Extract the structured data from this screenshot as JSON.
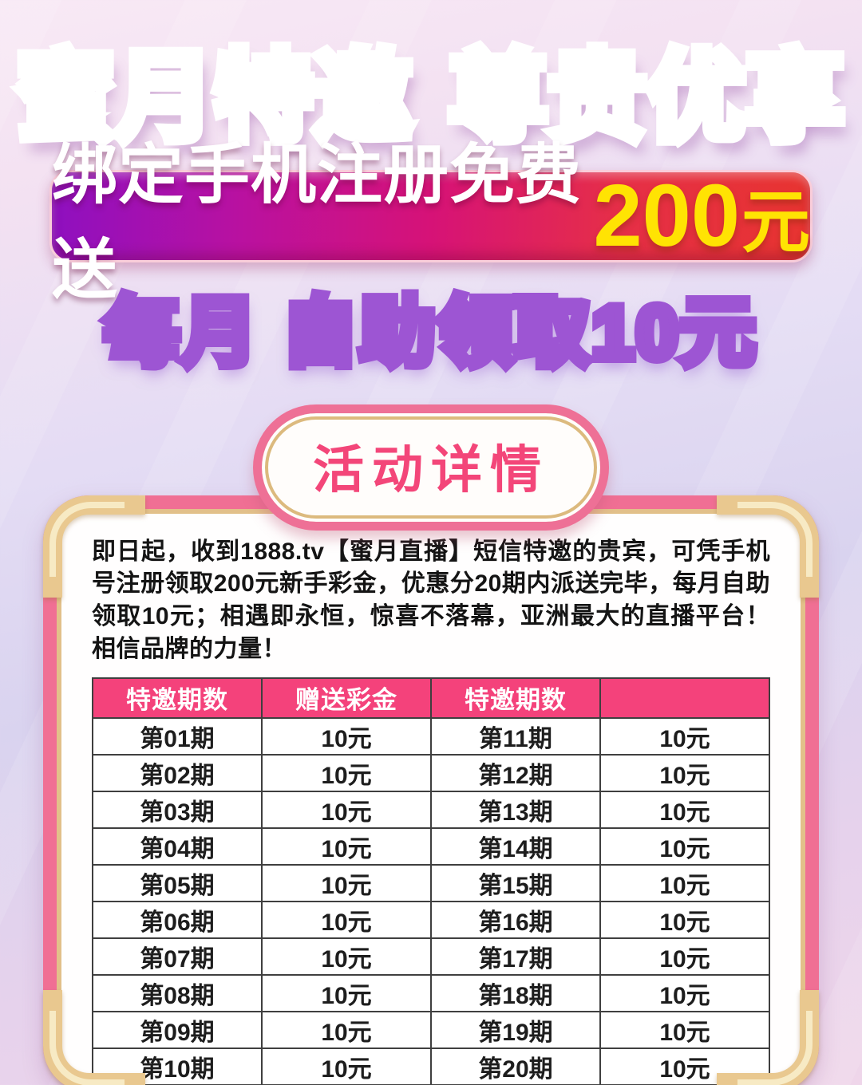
{
  "title": {
    "part1": "蜜月特邀",
    "part2": "尊贵优享"
  },
  "banner": {
    "text": "绑定手机注册免费送",
    "amount": "200",
    "unit": "元"
  },
  "subtitle": "每月 自助领取10元",
  "details_button": {
    "label": "活动详情"
  },
  "card": {
    "description": "即日起，收到1888.tv【蜜月直播】短信特邀的贵宾，可凭手机号注册领取200元新手彩金，优惠分20期内派送完毕，每月自助领取10元；相遇即永恒，惊喜不落幕，亚洲最大的直播平台！相信品牌的力量！",
    "table": {
      "headers": [
        "特邀期数",
        "赠送彩金",
        "特邀期数",
        ""
      ],
      "rows": [
        [
          "第01期",
          "10元",
          "第11期",
          "10元"
        ],
        [
          "第02期",
          "10元",
          "第12期",
          "10元"
        ],
        [
          "第03期",
          "10元",
          "第13期",
          "10元"
        ],
        [
          "第04期",
          "10元",
          "第14期",
          "10元"
        ],
        [
          "第05期",
          "10元",
          "第15期",
          "10元"
        ],
        [
          "第06期",
          "10元",
          "第16期",
          "10元"
        ],
        [
          "第07期",
          "10元",
          "第17期",
          "10元"
        ],
        [
          "第08期",
          "10元",
          "第18期",
          "10元"
        ],
        [
          "第09期",
          "10元",
          "第19期",
          "10元"
        ],
        [
          "第10期",
          "10元",
          "第20期",
          "10元"
        ]
      ]
    }
  },
  "colors": {
    "title_purple_start": "#a40bd3",
    "title_magenta_end": "#e0168f",
    "title_red": "#e63a47",
    "banner_gradient_start": "#8e10c0",
    "banner_gradient_mid": "#d61277",
    "banner_gradient_end": "#e73430",
    "banner_amount_yellow": "#ffe303",
    "subtitle_fill": "#fcf2de",
    "subtitle_stroke": "#9d55d3",
    "pill_text_pink": "#f34679",
    "frame_pink": "#f06f94",
    "frame_gold": "#e9c88f",
    "table_header_bg": "#f4427b",
    "table_border": "#3f3f3f",
    "background_lavender": "#d9d3ef"
  }
}
